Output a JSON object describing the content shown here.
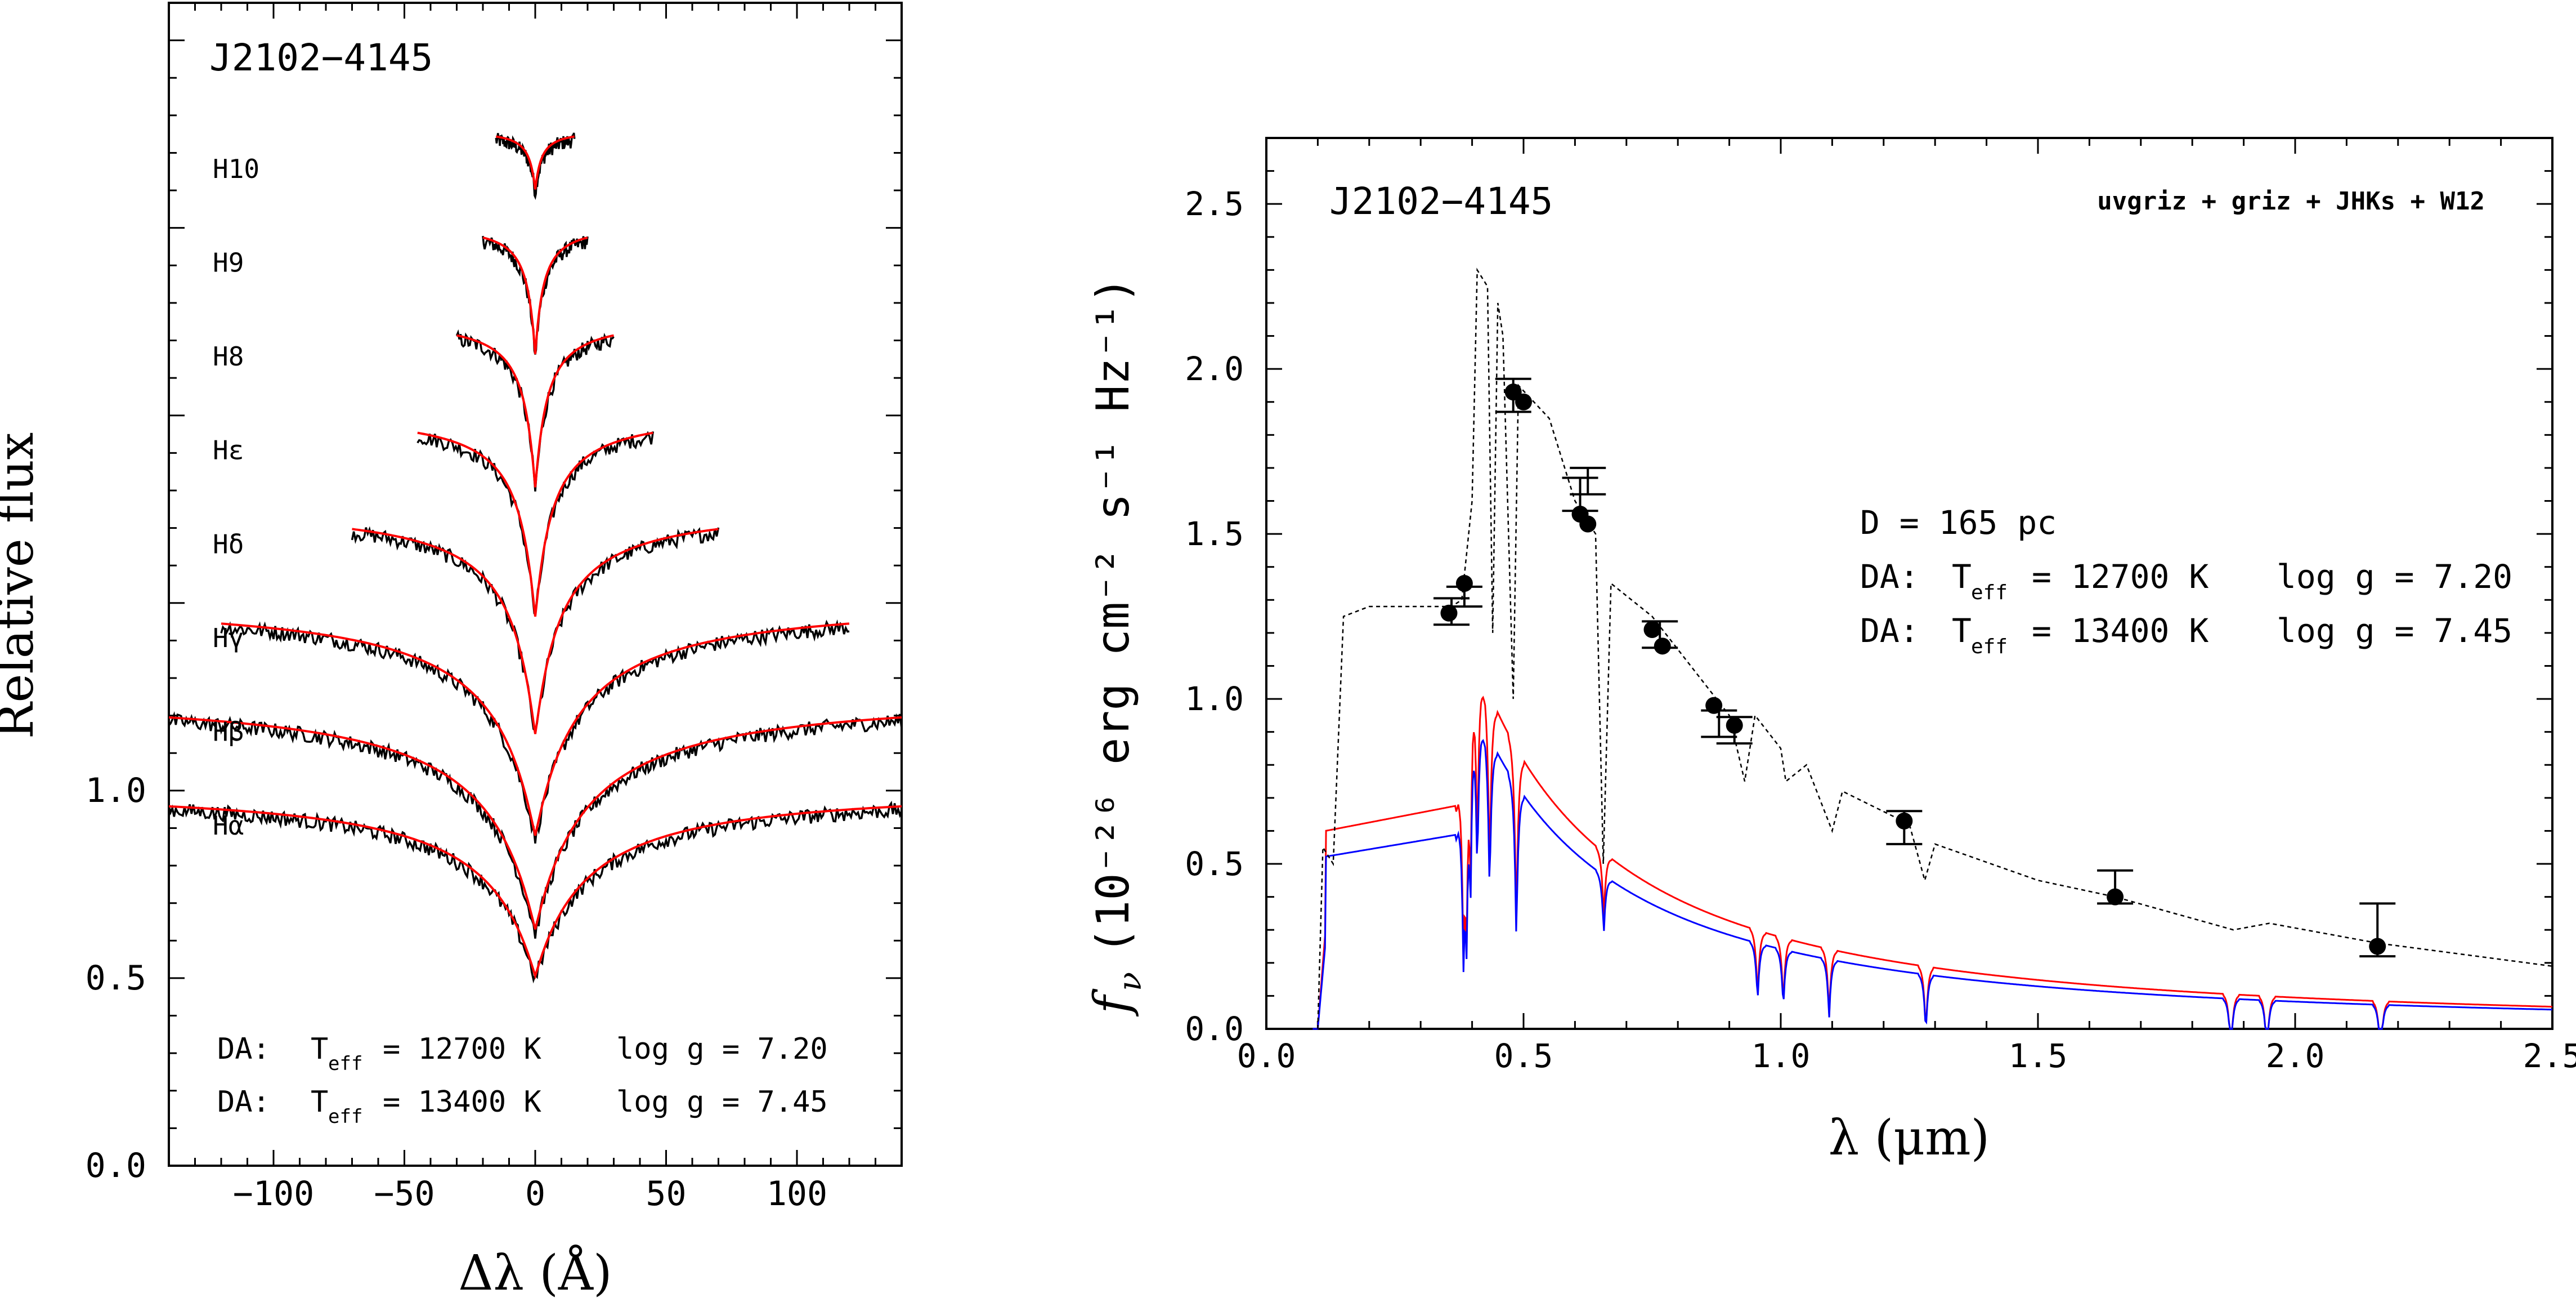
{
  "left_panel": {
    "object_label": "J2102−4145",
    "ylabel": "Relative flux",
    "xlabel": "Δλ (Å)",
    "model_lines": [
      {
        "prefix": "DA:",
        "teff_label": "T",
        "teff_sub": "eff",
        "teff_value": "= 12700 K",
        "logg": "log g = 7.20",
        "color": "#ff0000"
      },
      {
        "prefix": "DA:",
        "teff_label": "T",
        "teff_sub": "eff",
        "teff_value": "= 13400 K",
        "logg": "log g = 7.45",
        "color": "#0000ff"
      }
    ],
    "line_labels": [
      "H10",
      "H9",
      "H8",
      "Hε",
      "Hδ",
      "Hγ",
      "Hβ",
      "Hα"
    ]
  },
  "right_panel": {
    "object_label": "J2102−4145",
    "filters": "uvgriz + griz + JHKs + W12",
    "distance": "D = 165 pc",
    "ylabel_text": "f",
    "ylabel_sub": "ν",
    "ylabel_units": "(10⁻²⁶ erg cm⁻² s⁻¹ Hz⁻¹)",
    "xlabel": "λ (μm)",
    "model_lines": [
      {
        "prefix": "DA:",
        "teff_label": "T",
        "teff_sub": "eff",
        "teff_value": "= 12700 K",
        "logg": "log g = 7.20",
        "color": "#ff0000"
      },
      {
        "prefix": "DA:",
        "teff_label": "T",
        "teff_sub": "eff",
        "teff_value": "= 13400 K",
        "logg": "log g = 7.45",
        "color": "#0000ff"
      }
    ]
  },
  "chart_data": [
    {
      "type": "line",
      "panel": "left",
      "xlabel": "Δλ (Å)",
      "ylabel": "Relative flux",
      "xlim": [
        -140,
        140
      ],
      "ylim": [
        0.0,
        3.1
      ],
      "xticks": [
        -100,
        -50,
        0,
        50,
        100
      ],
      "yticks": [
        0.0,
        0.5,
        1.0
      ],
      "series": [
        {
          "name": "H10",
          "halfwidth": 15,
          "offset": 1.75,
          "depth": 0.15
        },
        {
          "name": "H9",
          "halfwidth": 20,
          "offset": 1.5,
          "depth": 0.33
        },
        {
          "name": "H8",
          "halfwidth": 30,
          "offset": 1.25,
          "depth": 0.43
        },
        {
          "name": "Hε",
          "halfwidth": 45,
          "offset": 1.0,
          "depth": 0.52
        },
        {
          "name": "Hδ",
          "halfwidth": 70,
          "offset": 0.75,
          "depth": 0.58
        },
        {
          "name": "Hγ",
          "halfwidth": 120,
          "offset": 0.5,
          "depth": 0.6
        },
        {
          "name": "Hβ",
          "halfwidth": 140,
          "offset": 0.25,
          "depth": 0.6
        },
        {
          "name": "Hα",
          "halfwidth": 140,
          "offset": 0.0,
          "depth": 0.48
        }
      ]
    },
    {
      "type": "scatter",
      "panel": "right",
      "xlabel": "λ (μm)",
      "ylabel": "f_ν (10⁻²⁶ erg cm⁻² s⁻¹ Hz⁻¹)",
      "xlim": [
        0.0,
        2.5
      ],
      "ylim": [
        0.0,
        2.7
      ],
      "xticks": [
        0.0,
        0.5,
        1.0,
        1.5,
        2.0,
        2.5
      ],
      "yticks": [
        0.0,
        0.5,
        1.0,
        1.5,
        2.0,
        2.5
      ],
      "observed": [
        {
          "x": 0.355,
          "y": 1.26
        },
        {
          "x": 0.385,
          "y": 1.35
        },
        {
          "x": 0.48,
          "y": 1.93
        },
        {
          "x": 0.5,
          "y": 1.9
        },
        {
          "x": 0.61,
          "y": 1.56
        },
        {
          "x": 0.625,
          "y": 1.53
        },
        {
          "x": 0.75,
          "y": 1.21
        },
        {
          "x": 0.77,
          "y": 1.16
        },
        {
          "x": 0.87,
          "y": 0.98
        },
        {
          "x": 0.91,
          "y": 0.92
        },
        {
          "x": 1.24,
          "y": 0.63
        },
        {
          "x": 1.65,
          "y": 0.4
        },
        {
          "x": 2.16,
          "y": 0.25
        }
      ],
      "synthetic": [
        {
          "x": 0.36,
          "y": 1.265,
          "err": 0.04
        },
        {
          "x": 0.385,
          "y": 1.31,
          "err": 0.03
        },
        {
          "x": 0.48,
          "y": 1.92,
          "err": 0.05
        },
        {
          "x": 0.61,
          "y": 1.62,
          "err": 0.05
        },
        {
          "x": 0.625,
          "y": 1.66,
          "err": 0.04
        },
        {
          "x": 0.765,
          "y": 1.195,
          "err": 0.04
        },
        {
          "x": 0.88,
          "y": 0.925,
          "err": 0.04
        },
        {
          "x": 0.91,
          "y": 0.905,
          "err": 0.04
        },
        {
          "x": 1.24,
          "y": 0.61,
          "err": 0.05
        },
        {
          "x": 1.65,
          "y": 0.43,
          "err": 0.05
        },
        {
          "x": 2.16,
          "y": 0.3,
          "err": 0.08
        }
      ],
      "series": [
        {
          "name": "DA: Teff = 12700 K log g = 7.20",
          "color": "#ff0000"
        },
        {
          "name": "DA: Teff = 13400 K log g = 7.45",
          "color": "#0000ff"
        }
      ]
    }
  ]
}
